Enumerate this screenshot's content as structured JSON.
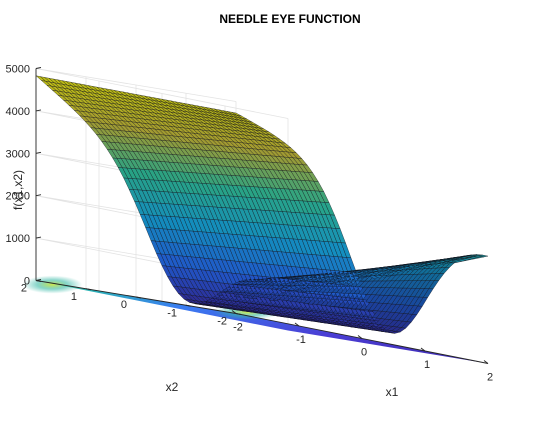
{
  "chart_data": {
    "type": "surface",
    "title": "NEEDLE EYE FUNCTION",
    "xlabel": "x1",
    "ylabel": "x2",
    "zlabel": "f(x1,x2)",
    "xlim": [
      -2,
      2
    ],
    "ylim": [
      -2,
      2
    ],
    "zlim": [
      0,
      5000
    ],
    "x_ticks": [
      -2,
      -1,
      0,
      1,
      2
    ],
    "y_ticks": [
      -2,
      -1,
      0,
      1,
      2
    ],
    "z_ticks": [
      0,
      1000,
      2000,
      3000,
      4000,
      5000
    ],
    "grid": true,
    "colormap": "parula",
    "contour_projection": true,
    "corner_values": [
      {
        "x1": 2,
        "x2": 2,
        "f": 800
      },
      {
        "x1": -2,
        "x2": 2,
        "f": 4800
      },
      {
        "x1": 2,
        "x2": -2,
        "f": 2600
      },
      {
        "x1": -2,
        "x2": -2,
        "f": 4700
      }
    ],
    "colors": {
      "low": "#3e26a8",
      "mid": "#24b8b4",
      "high": "#f9fb0e"
    }
  }
}
